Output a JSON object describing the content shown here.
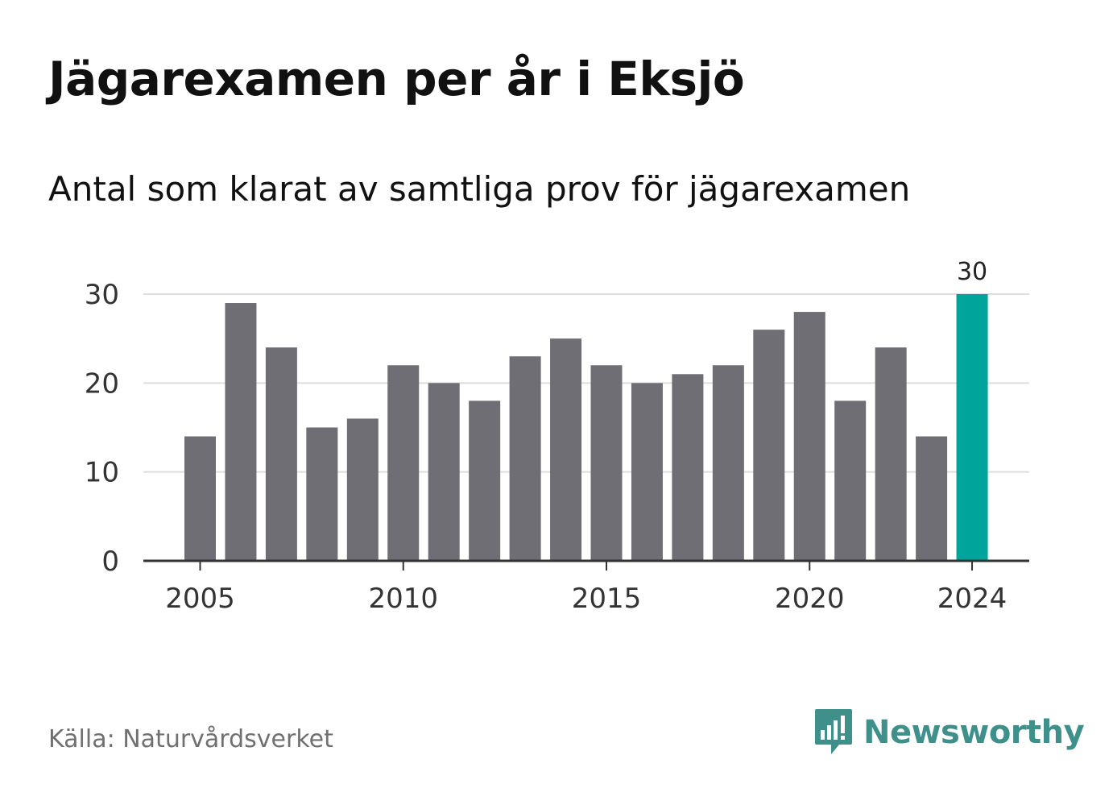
{
  "header": {
    "title": "Jägarexamen per år i Eksjö",
    "subtitle": "Antal som klarat av samtliga prov för jägarexamen"
  },
  "footer": {
    "source": "Källa: Naturvårdsverket",
    "brand": "Newsworthy",
    "brand_icon": "newsworthy-logo-icon"
  },
  "colors": {
    "bar": "#6e6e74",
    "highlight": "#00a49a",
    "brand": "#3f8f8a",
    "grid": "#dddddd",
    "axis": "#333333"
  },
  "chart_data": {
    "type": "bar",
    "title": "Jägarexamen per år i Eksjö",
    "subtitle": "Antal som klarat av samtliga prov för jägarexamen",
    "xlabel": "",
    "ylabel": "",
    "categories": [
      2005,
      2006,
      2007,
      2008,
      2009,
      2010,
      2011,
      2012,
      2013,
      2014,
      2015,
      2016,
      2017,
      2018,
      2019,
      2020,
      2021,
      2022,
      2023,
      2024
    ],
    "values": [
      14,
      29,
      24,
      15,
      16,
      22,
      20,
      18,
      23,
      25,
      22,
      20,
      21,
      22,
      26,
      28,
      18,
      24,
      14,
      30
    ],
    "highlight_category": 2024,
    "data_labels": [
      {
        "category": 2024,
        "text": "30"
      }
    ],
    "x_ticks": [
      2005,
      2010,
      2015,
      2020,
      2024
    ],
    "y_ticks": [
      0,
      10,
      20,
      30
    ],
    "ylim": [
      0,
      30
    ],
    "grid": true,
    "legend": "none"
  }
}
